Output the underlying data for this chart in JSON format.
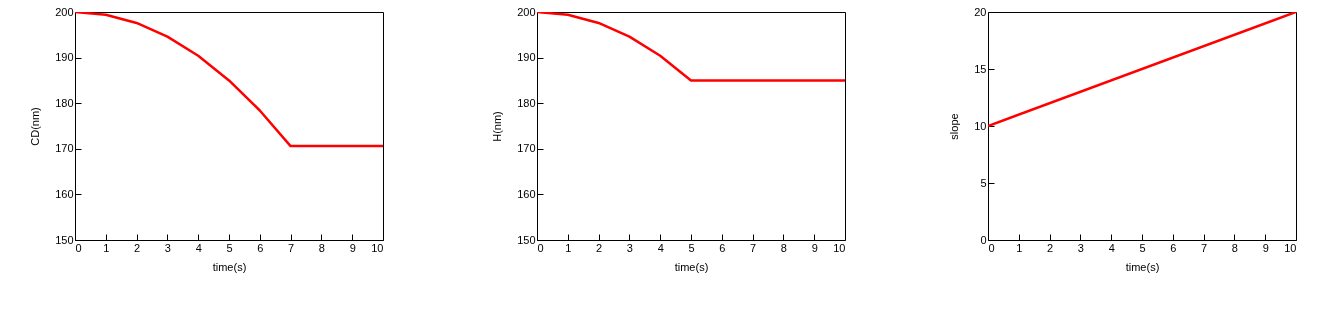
{
  "chart_data": [
    {
      "type": "line",
      "xlabel": "time(s)",
      "ylabel": "CD(nm)",
      "xlim": [
        0,
        10
      ],
      "ylim": [
        150,
        200
      ],
      "xticks": [
        0,
        1,
        2,
        3,
        4,
        5,
        6,
        7,
        8,
        9,
        10
      ],
      "yticks": [
        150,
        160,
        170,
        180,
        190,
        200
      ],
      "grid": false,
      "line_style": "solid",
      "x": [
        0,
        1,
        2,
        3,
        4,
        5,
        6,
        7,
        8,
        9,
        10
      ],
      "series": [
        {
          "color": "#ff0000",
          "values": [
            200,
            199.4,
            197.6,
            194.6,
            190.4,
            185,
            178.4,
            170.6,
            170.6,
            170.6,
            170.6
          ]
        }
      ]
    },
    {
      "type": "line",
      "xlabel": "time(s)",
      "ylabel": "H(nm)",
      "xlim": [
        0,
        10
      ],
      "ylim": [
        150,
        200
      ],
      "xticks": [
        0,
        1,
        2,
        3,
        4,
        5,
        6,
        7,
        8,
        9,
        10
      ],
      "yticks": [
        150,
        160,
        170,
        180,
        190,
        200
      ],
      "grid": false,
      "line_style": "solid",
      "x": [
        0,
        1,
        2,
        3,
        4,
        5,
        6,
        7,
        8,
        9,
        10
      ],
      "series": [
        {
          "color": "#ff0000",
          "values": [
            200,
            199.4,
            197.6,
            194.6,
            190.4,
            185,
            185,
            185,
            185,
            185,
            185
          ]
        }
      ]
    },
    {
      "type": "line",
      "xlabel": "time(s)",
      "ylabel": "slope",
      "xlim": [
        0,
        10
      ],
      "ylim": [
        0,
        20
      ],
      "xticks": [
        0,
        1,
        2,
        3,
        4,
        5,
        6,
        7,
        8,
        9,
        10
      ],
      "yticks": [
        0,
        5,
        10,
        15,
        20
      ],
      "grid": false,
      "line_style": "solid",
      "x": [
        0,
        10
      ],
      "series": [
        {
          "color": "#ff0000",
          "values": [
            10,
            20
          ]
        }
      ]
    }
  ]
}
